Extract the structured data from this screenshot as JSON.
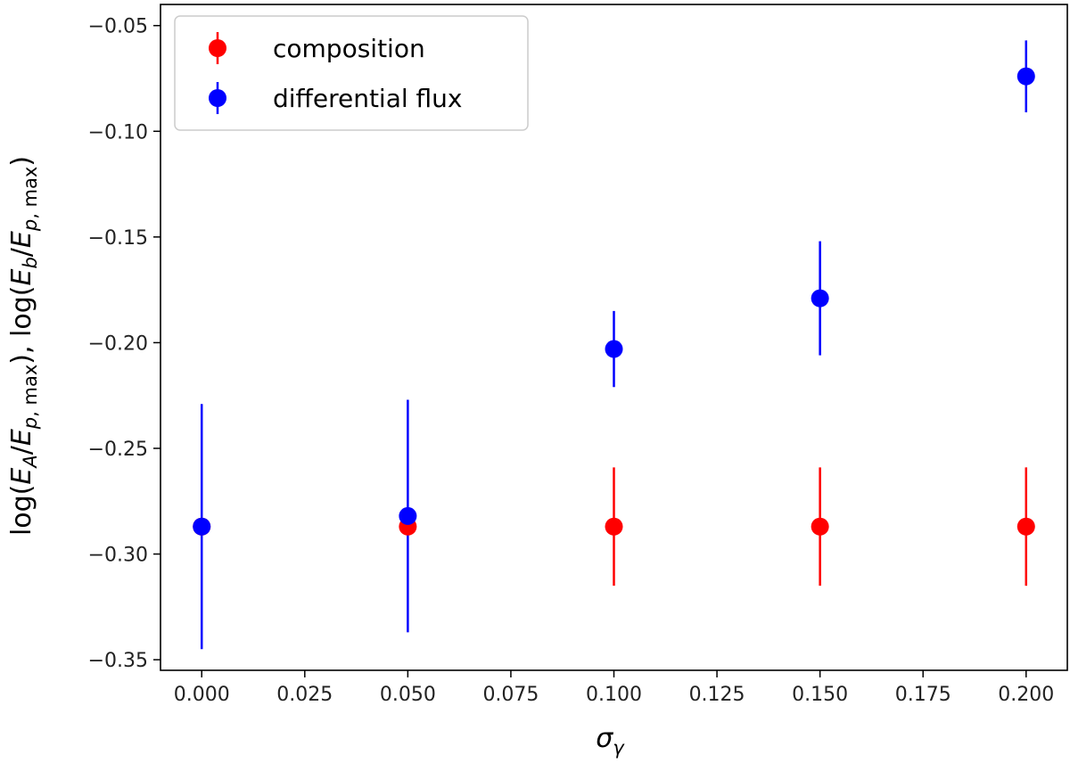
{
  "chart_data": {
    "type": "scatter",
    "xlabel": "σγ",
    "ylabel": "log(EA/Ep, max), log(Eb/Ep, max)",
    "xlim": [
      -0.01,
      0.21
    ],
    "ylim": [
      -0.355,
      -0.04
    ],
    "x_ticks": [
      "0.000",
      "0.025",
      "0.050",
      "0.075",
      "0.100",
      "0.125",
      "0.150",
      "0.175",
      "0.200"
    ],
    "y_ticks": [
      "-0.35",
      "-0.30",
      "-0.25",
      "-0.20",
      "-0.15",
      "-0.10",
      "-0.05"
    ],
    "grid": false,
    "legend_position": "top-left",
    "series": [
      {
        "name": "composition",
        "color": "#ff0000",
        "points": [
          {
            "x": 0.0,
            "y": -0.287,
            "err": 0.0
          },
          {
            "x": 0.05,
            "y": -0.287,
            "err": 0.0
          },
          {
            "x": 0.1,
            "y": -0.287,
            "err": 0.028
          },
          {
            "x": 0.15,
            "y": -0.287,
            "err": 0.028
          },
          {
            "x": 0.2,
            "y": -0.287,
            "err": 0.028
          }
        ]
      },
      {
        "name": "differential flux",
        "color": "#0000ff",
        "points": [
          {
            "x": 0.0,
            "y": -0.287,
            "err": 0.058
          },
          {
            "x": 0.05,
            "y": -0.282,
            "err": 0.055
          },
          {
            "x": 0.1,
            "y": -0.203,
            "err": 0.018
          },
          {
            "x": 0.15,
            "y": -0.179,
            "err": 0.027
          },
          {
            "x": 0.2,
            "y": -0.074,
            "err": 0.017
          }
        ]
      }
    ]
  }
}
